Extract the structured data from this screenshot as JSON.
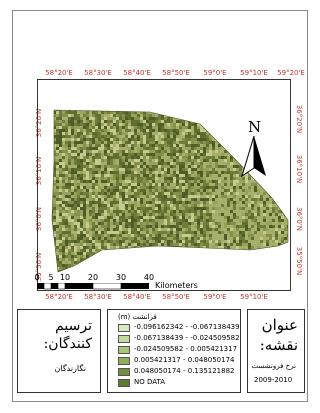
{
  "map": {
    "top_ticks": [
      "58°20'E",
      "58°30'E",
      "58°40'E",
      "58°50'E",
      "59°0'E",
      "59°10'E",
      "59°20'E"
    ],
    "bottom_ticks": [
      "58°20'E",
      "58°30'E",
      "58°40'E",
      "58°50'E",
      "59°0'E",
      "59°10'E"
    ],
    "left_ticks": [
      "36°20'N",
      "36°10'N",
      "36°0'N",
      "35°50'N"
    ],
    "right_ticks": [
      "36°20'N",
      "36°10'N",
      "36°0'N",
      "35°50'N"
    ],
    "north_label": "N",
    "raster_colors": [
      "#5f6e2f",
      "#6f7d3a",
      "#85904a",
      "#a7b06a",
      "#4e5c28",
      "#98a25c",
      "#c4cb8d"
    ]
  },
  "scale_bar": {
    "labels": [
      "0",
      "5",
      "10",
      "20",
      "30",
      "40"
    ],
    "unit": "Kilometers"
  },
  "cartographer_box": {
    "title_line1": "ترسیم",
    "title_line2": "کنندگان:",
    "names": "نگارندگان"
  },
  "legend": {
    "title": "(m) فرانشت",
    "items": [
      {
        "label": "-0.096162342 - -0.067138439",
        "color": "#d7ebc2"
      },
      {
        "label": "-0.067138439 - -0.024509582",
        "color": "#c3dba0"
      },
      {
        "label": "-0.024509582 - 0.005421317",
        "color": "#a9c57c"
      },
      {
        "label": "0.005421317 - 0.048050174",
        "color": "#8fae5a"
      },
      {
        "label": "0.048050174 - 0.135121882",
        "color": "#71923e"
      },
      {
        "label": "NO DATA",
        "color": "#5d7a2e"
      }
    ]
  },
  "title_box": {
    "title_line1": "عنوان",
    "title_line2": "نقشه:",
    "subtitle": "نرخ فرونشست",
    "years": "2009-2010"
  }
}
